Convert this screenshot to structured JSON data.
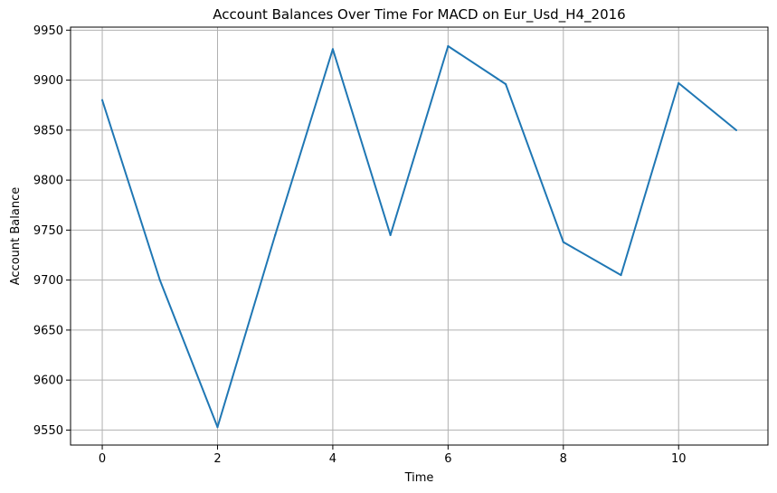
{
  "chart_data": {
    "type": "line",
    "title": "Account Balances Over Time For MACD on Eur_Usd_H4_2016",
    "xlabel": "Time",
    "ylabel": "Account Balance",
    "x": [
      0,
      1,
      2,
      3,
      4,
      5,
      6,
      7,
      8,
      9,
      10,
      11
    ],
    "series": [
      {
        "values": [
          9880,
          9700,
          9553,
          9745,
          9931,
          9745,
          9934,
          9896,
          9738,
          9705,
          9897,
          9850
        ],
        "color": "#1f77b4"
      }
    ],
    "xlim": [
      -0.55,
      11.55
    ],
    "ylim": [
      9535,
      9953
    ],
    "x_ticks": [
      0,
      2,
      4,
      6,
      8,
      10
    ],
    "y_ticks": [
      9550,
      9600,
      9650,
      9700,
      9750,
      9800,
      9850,
      9900,
      9950
    ],
    "grid": true,
    "legend": "none"
  }
}
